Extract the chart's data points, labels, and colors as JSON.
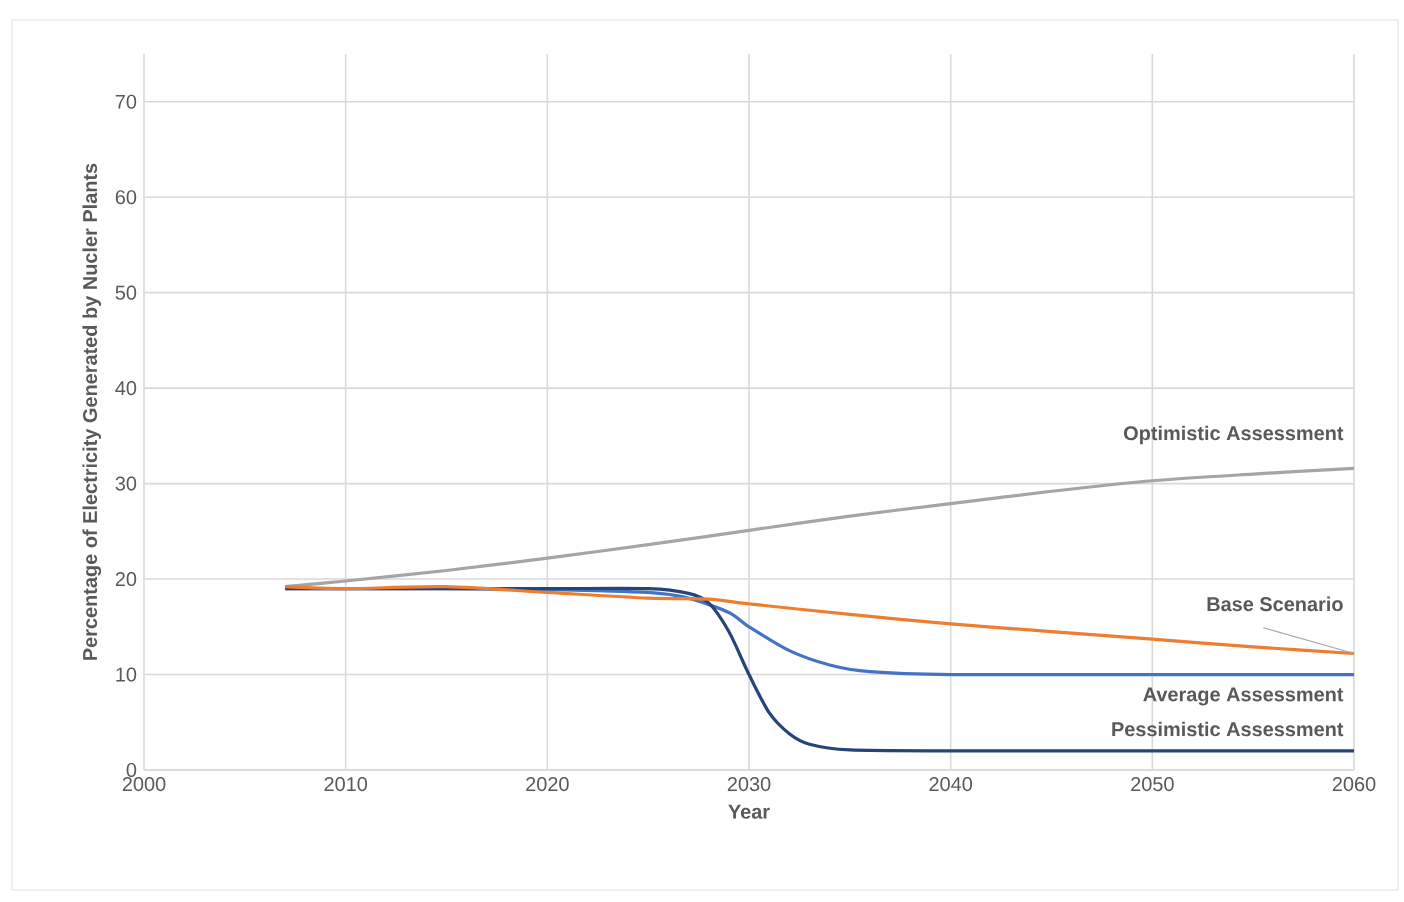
{
  "chart_data": {
    "type": "line",
    "xlabel": "Year",
    "ylabel": "Percentage of Electricity Generated by Nucler Plants",
    "xlim": [
      2000,
      2060
    ],
    "xticks": [
      2000,
      2010,
      2020,
      2030,
      2040,
      2050,
      2060
    ],
    "ylim": [
      0,
      75
    ],
    "yticks": [
      0,
      10,
      20,
      30,
      40,
      50,
      60,
      70
    ],
    "grid": true,
    "marker": "none",
    "line_style": "solid",
    "series": [
      {
        "name": "Optimistic Assessment",
        "color": "#a5a5a5",
        "x": [
          2007,
          2010,
          2015,
          2020,
          2025,
          2030,
          2035,
          2040,
          2045,
          2050,
          2055,
          2060
        ],
        "values": [
          19.2,
          19.8,
          20.9,
          22.2,
          23.6,
          25.1,
          26.6,
          27.9,
          29.2,
          30.3,
          31.0,
          31.6
        ]
      },
      {
        "name": "Base Scenario",
        "color": "#ed7d31",
        "x": [
          2007,
          2010,
          2015,
          2020,
          2025,
          2028,
          2030,
          2035,
          2040,
          2045,
          2050,
          2055,
          2060
        ],
        "values": [
          19.2,
          19.0,
          19.2,
          18.6,
          18.0,
          17.9,
          17.4,
          16.3,
          15.3,
          14.5,
          13.7,
          12.9,
          12.2
        ]
      },
      {
        "name": "Average Assessment",
        "color": "#4472c4",
        "x": [
          2007,
          2015,
          2020,
          2025,
          2027,
          2029,
          2030,
          2032,
          2034,
          2036,
          2040,
          2050,
          2060
        ],
        "values": [
          19.0,
          19.0,
          18.9,
          18.6,
          18.0,
          16.5,
          15.0,
          12.5,
          11.0,
          10.3,
          10.0,
          10.0,
          10.0
        ]
      },
      {
        "name": "Pessimistic Assessment",
        "color": "#264478",
        "x": [
          2007,
          2015,
          2020,
          2025,
          2027,
          2028,
          2029,
          2030,
          2031,
          2032,
          2033,
          2035,
          2040,
          2050,
          2060
        ],
        "values": [
          19.0,
          19.0,
          19.0,
          19.0,
          18.5,
          17.5,
          14.5,
          10.0,
          6.0,
          3.8,
          2.7,
          2.1,
          2.0,
          2.0,
          2.0
        ]
      }
    ]
  }
}
